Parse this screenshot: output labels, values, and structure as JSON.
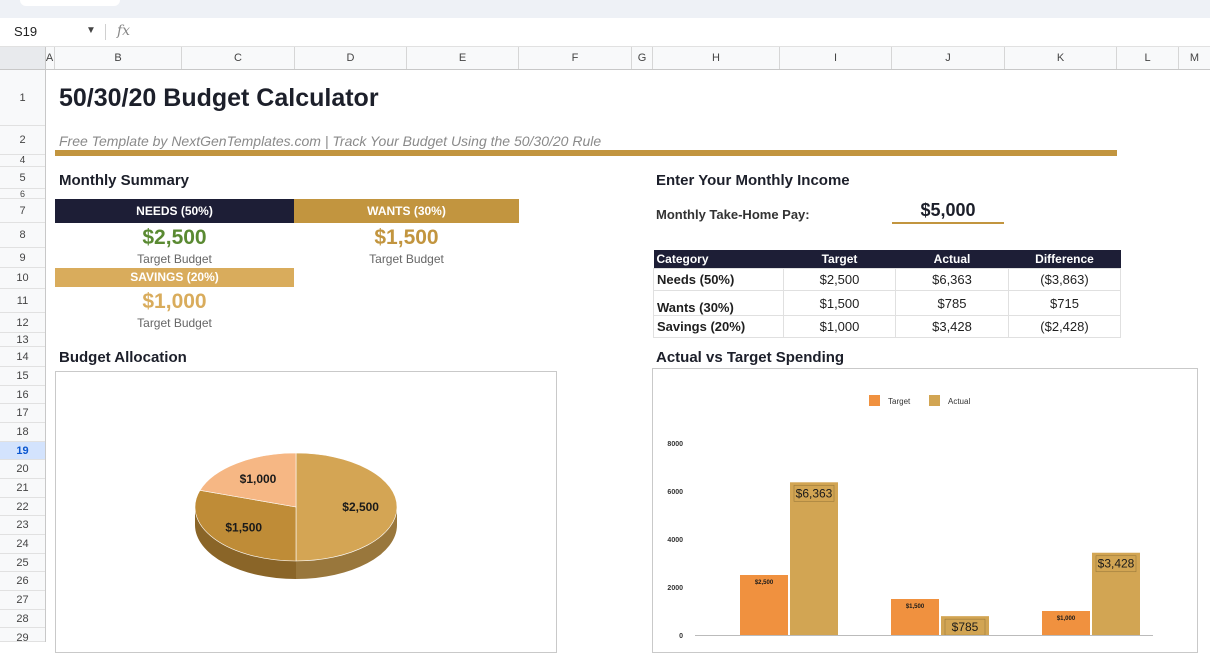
{
  "toolbar": {
    "cell_ref": "S19",
    "fx": "fx"
  },
  "columns": [
    "A",
    "B",
    "C",
    "D",
    "E",
    "F",
    "G",
    "H",
    "I",
    "J",
    "K",
    "L",
    "M"
  ],
  "rows": [
    "1",
    "2",
    "4",
    "5",
    "6",
    "7",
    "8",
    "9",
    "10",
    "11",
    "12",
    "13",
    "14",
    "15",
    "16",
    "17",
    "18",
    "19",
    "20",
    "21",
    "22",
    "23",
    "24",
    "25",
    "26",
    "27",
    "28",
    "29"
  ],
  "selected_row": "19",
  "title": "50/30/20 Budget Calculator",
  "subtitle": "Free Template by NextGenTemplates.com  |  Track Your Budget Using the 50/30/20 Rule",
  "summary": {
    "heading": "Monthly Summary",
    "needs": {
      "label": "NEEDS (50%)",
      "value": "$2,500",
      "caption": "Target Budget"
    },
    "wants": {
      "label": "WANTS (30%)",
      "value": "$1,500",
      "caption": "Target Budget"
    },
    "savings": {
      "label": "SAVINGS (20%)",
      "value": "$1,000",
      "caption": "Target Budget"
    }
  },
  "income": {
    "heading": "Enter Your Monthly Income",
    "label": "Monthly Take-Home Pay:",
    "value": "$5,000"
  },
  "table": {
    "headers": [
      "Category",
      "Target",
      "Actual",
      "Difference"
    ],
    "rows": [
      [
        "Needs (50%)",
        "$2,500",
        "$6,363",
        "($3,863)"
      ],
      [
        "Wants (30%)",
        "$1,500",
        "$785",
        "$715"
      ],
      [
        "Savings (20%)",
        "$1,000",
        "$3,428",
        "($2,428)"
      ]
    ]
  },
  "allocation": {
    "heading": "Budget Allocation"
  },
  "spending": {
    "heading": "Actual vs Target Spending"
  },
  "colors": {
    "navy": "#1d1e36",
    "gold": "#c2953f",
    "light_gold": "#d9ac5c",
    "green": "#5a8a32",
    "orange": "#f0913f",
    "tan": "#d2a553",
    "peach": "#f6b784"
  },
  "chart_data": [
    {
      "type": "pie",
      "labels": [
        "$2,500",
        "$1,500",
        "$1,000"
      ],
      "values": [
        2500,
        1500,
        1000
      ],
      "colors": [
        "#d4a554",
        "#bf8c37",
        "#f6b784"
      ]
    },
    {
      "type": "bar",
      "legend": [
        "Target",
        "Actual"
      ],
      "legend_position": "top",
      "ylim": [
        0,
        8000
      ],
      "yticks": [
        "0",
        "2000",
        "4000",
        "6000",
        "8000"
      ],
      "series": [
        {
          "name": "Target",
          "values": [
            2500,
            1500,
            1000
          ],
          "labels": [
            "$2,500",
            "$1,500",
            "$1,000"
          ],
          "color": "#f0913f"
        },
        {
          "name": "Actual",
          "values": [
            6363,
            785,
            3428
          ],
          "labels": [
            "$6,363",
            "$785",
            "$3,428"
          ],
          "color": "#d2a553"
        }
      ]
    }
  ]
}
